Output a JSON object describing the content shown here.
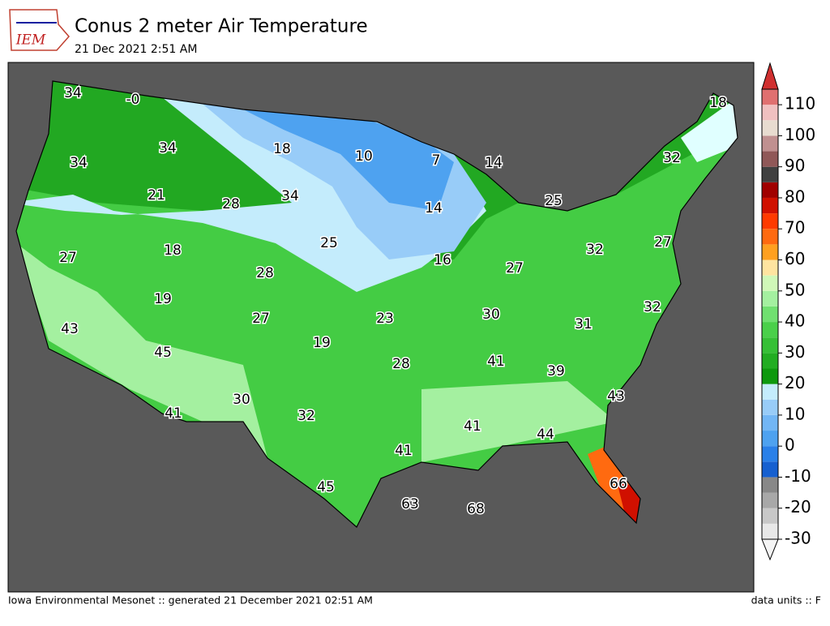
{
  "header": {
    "logo_text": "IEM",
    "title": "Conus 2 meter Air Temperature",
    "subtitle": "21 Dec 2021 2:51 AM"
  },
  "map": {
    "labels": [
      "34",
      "-0",
      "34",
      "18",
      "10",
      "7",
      "14",
      "18",
      "34",
      "21",
      "28",
      "34",
      "32",
      "25",
      "14",
      "25",
      "18",
      "27",
      "28",
      "16",
      "27",
      "32",
      "27",
      "19",
      "27",
      "23",
      "30",
      "31",
      "32",
      "43",
      "45",
      "19",
      "28",
      "41",
      "39",
      "30",
      "41",
      "32",
      "43",
      "41",
      "44",
      "41",
      "45",
      "63",
      "68",
      "66"
    ]
  },
  "colorbar": {
    "min": -30,
    "max": 115,
    "ticks": [
      -30,
      -20,
      -10,
      0,
      10,
      20,
      30,
      40,
      50,
      60,
      70,
      80,
      90,
      100,
      110
    ],
    "colors": [
      "#e8e8e8",
      "#c8c8c8",
      "#a8a8a8",
      "#888888",
      "#1660d0",
      "#2a80e8",
      "#4ea2f0",
      "#72b6f5",
      "#98ccf8",
      "#c4ecfc",
      "#0e990e",
      "#22ad22",
      "#36c036",
      "#4ad04a",
      "#70e070",
      "#a4f0a0",
      "#d0f8b8",
      "#ffe4a0",
      "#ffa020",
      "#ff6a10",
      "#ff3a00",
      "#d01000",
      "#a00000",
      "#404040",
      "#905858",
      "#c09090",
      "#e8dcd0",
      "#f0c0c0",
      "#e07070"
    ]
  },
  "footer": {
    "left": "Iowa Environmental Mesonet :: generated 21 December 2021 02:51 AM",
    "right": "data units :: F"
  }
}
